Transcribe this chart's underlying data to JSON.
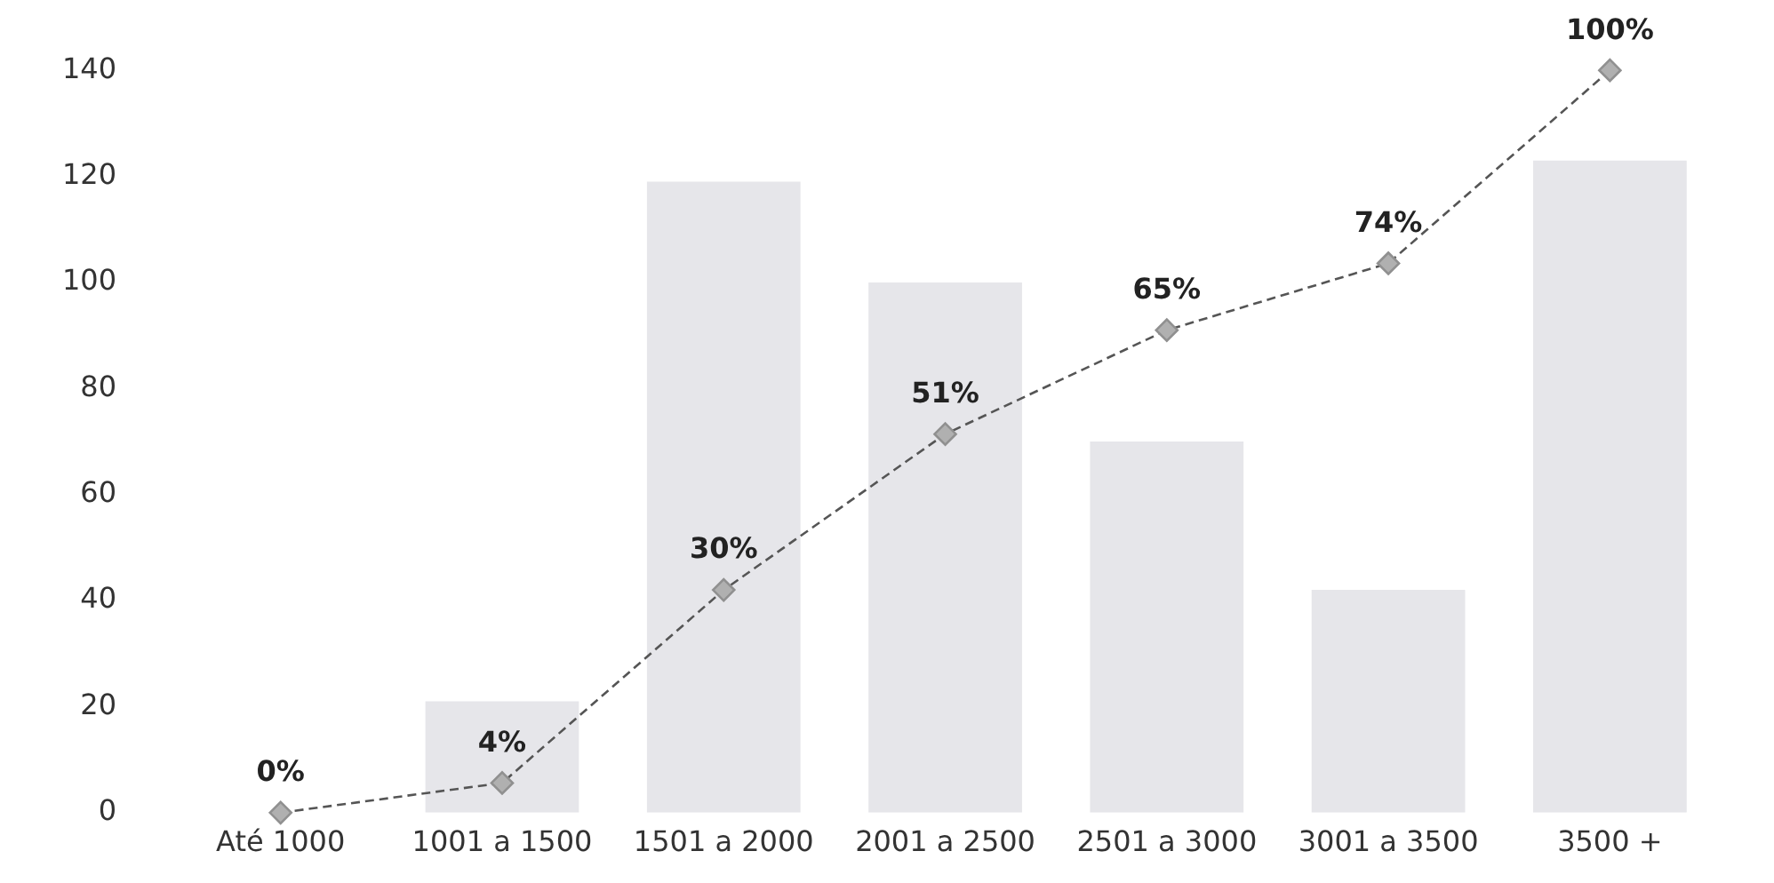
{
  "chart_data": {
    "type": "bar",
    "categories": [
      "Até 1000",
      "1001 a 1500",
      "1501 a 2000",
      "2001 a 2500",
      "2501 a 3000",
      "3001 a 3500",
      "3500 +"
    ],
    "series": [
      {
        "color": "#e6e6ea",
        "values": [
          0,
          21,
          119,
          100,
          70,
          42,
          123
        ]
      },
      {
        "type": "line",
        "axis": "y2",
        "color": "#555555",
        "values": [
          0,
          4,
          30,
          51,
          65,
          74,
          100
        ],
        "value_labels": [
          "0%",
          "4%",
          "30%",
          "51%",
          "65%",
          "74%",
          "100%"
        ]
      }
    ],
    "ylim": [
      0,
      140
    ],
    "yticks": [
      0,
      20,
      40,
      60,
      80,
      100,
      120,
      140
    ],
    "grid": false,
    "marker": "diamond",
    "line_style": "dashed"
  }
}
